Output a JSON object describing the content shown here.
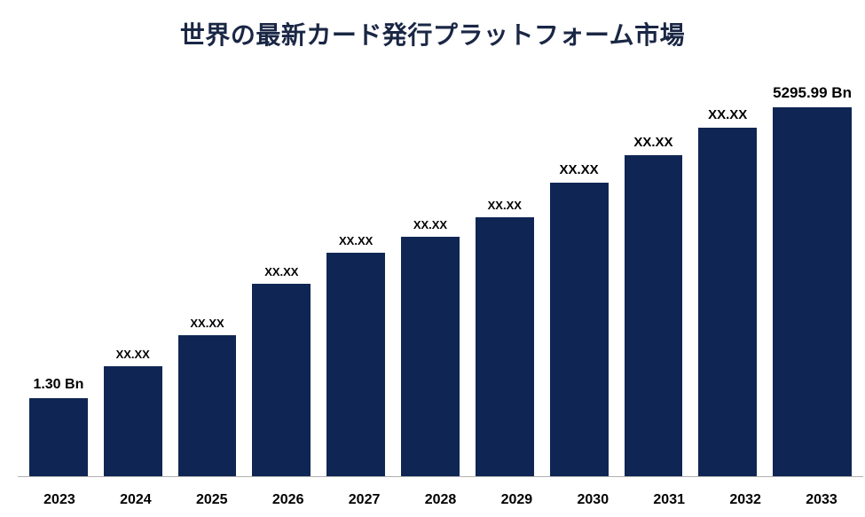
{
  "chart": {
    "type": "bar",
    "title": "世界の最新カード発行プラットフォーム市場",
    "title_fontsize": 28,
    "title_color": "#1a2744",
    "background_color": "#ffffff",
    "axis_line_color": "#b0b0b0",
    "bar_color": "#0f2654",
    "bar_width_ratio": 0.78,
    "x_label_fontsize": 16,
    "x_label_color": "#000000",
    "value_label_color": "#000000",
    "categories": [
      "2023",
      "2024",
      "2025",
      "2026",
      "2027",
      "2028",
      "2029",
      "2030",
      "2031",
      "2032",
      "2033"
    ],
    "heights_pct": [
      20,
      28,
      36,
      49,
      57,
      61,
      66,
      75,
      82,
      89,
      95
    ],
    "value_labels": [
      "1.30 Bn",
      "XX.XX",
      "XX.XX",
      "XX.XX",
      "XX.XX",
      "XX.XX",
      "XX.XX",
      "XX.XX",
      "XX.XX",
      "XX.XX",
      "5295.99 Bn"
    ],
    "value_label_fontsizes": [
      16,
      13,
      13,
      13,
      13,
      13,
      13,
      15,
      15,
      15,
      17
    ]
  }
}
